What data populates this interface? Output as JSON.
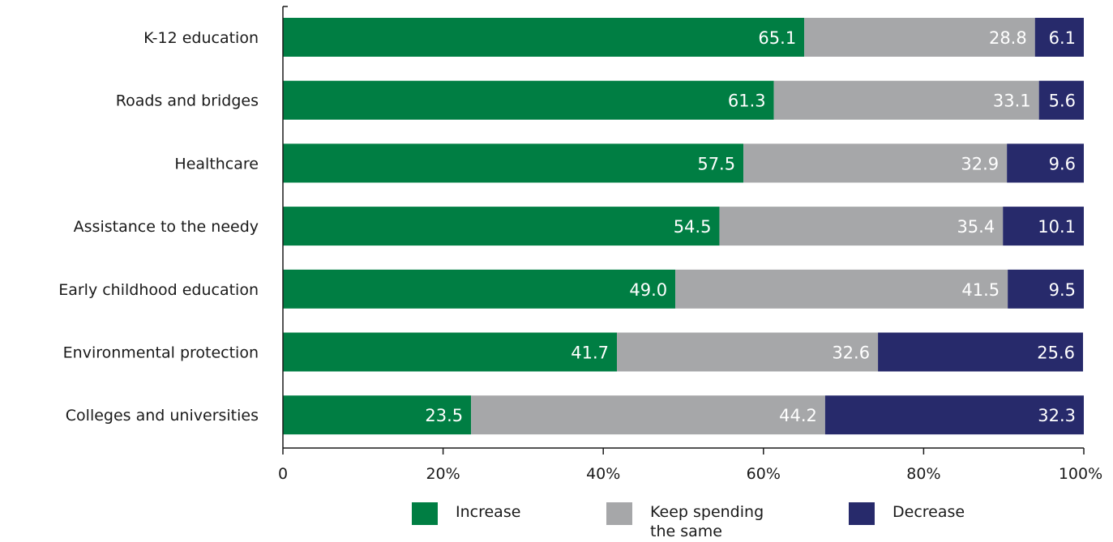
{
  "chart_data": {
    "type": "bar",
    "orientation": "horizontal",
    "stacked": true,
    "categories": [
      "K-12 education",
      "Roads and bridges",
      "Healthcare",
      "Assistance to the needy",
      "Early childhood education",
      "Environmental protection",
      "Colleges and universities"
    ],
    "series": [
      {
        "name": "Increase",
        "color": "#007e43",
        "values": [
          65.1,
          61.3,
          57.5,
          54.5,
          49.0,
          41.7,
          23.5
        ],
        "labels": [
          "65.1",
          "61.3",
          "57.5",
          "54.5",
          "49.0",
          "41.7",
          "23.5"
        ]
      },
      {
        "name": "Keep spending\nthe same",
        "color": "#a6a7a9",
        "values": [
          28.8,
          33.1,
          32.9,
          35.4,
          41.5,
          32.6,
          44.2
        ],
        "labels": [
          "28.8",
          "33.1",
          "32.9",
          "35.4",
          "41.5",
          "32.6",
          "44.2"
        ]
      },
      {
        "name": "Decrease",
        "color": "#272a6b",
        "values": [
          6.1,
          5.6,
          9.6,
          10.1,
          9.5,
          25.6,
          32.3
        ],
        "labels": [
          "6.1",
          "5.6",
          "9.6",
          "10.1",
          "9.5",
          "25.6",
          "32.3"
        ]
      }
    ],
    "xlim": [
      0,
      100
    ],
    "xticks": [
      0,
      20,
      40,
      60,
      80,
      100
    ],
    "xtick_labels": [
      "0",
      "20%",
      "40%",
      "60%",
      "80%",
      "100%"
    ],
    "grid": false,
    "legend_position": "bottom"
  }
}
